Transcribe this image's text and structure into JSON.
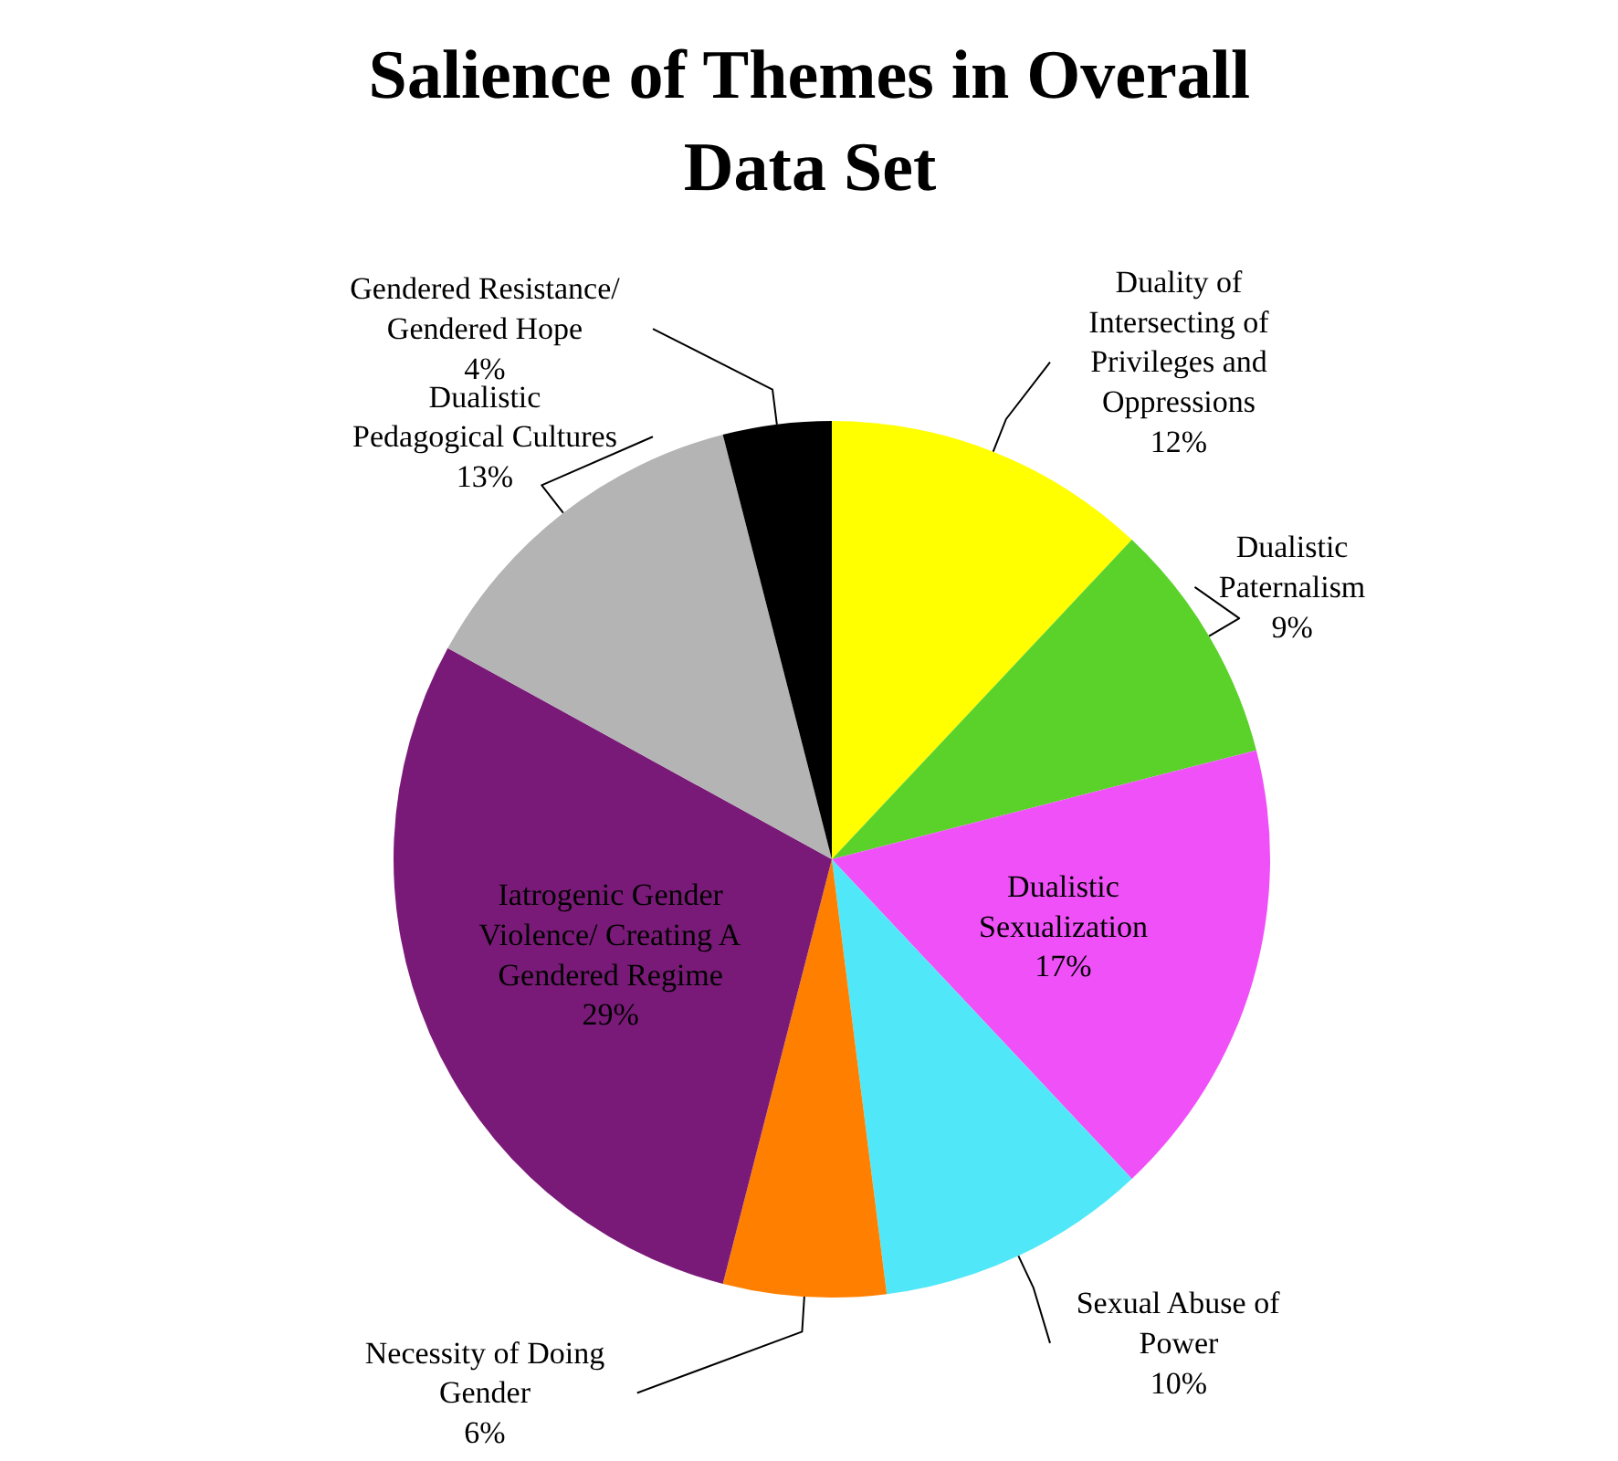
{
  "chart_data": {
    "type": "pie",
    "title": "Salience of Themes in Overall Data Set",
    "categories": [
      "Duality of Intersecting of Privileges and Oppressions",
      "Dualistic Paternalism",
      "Dualistic Sexualization",
      "Sexual Abuse of Power",
      "Necessity of Doing Gender",
      "Iatrogenic Gender Violence/ Creating A Gendered Regime",
      "Dualistic Pedagogical Cultures",
      "Gendered Resistance/ Gendered Hope"
    ],
    "values": [
      12,
      9,
      17,
      10,
      6,
      29,
      13,
      4
    ],
    "value_labels": [
      "12%",
      "9%",
      "17%",
      "10%",
      "6%",
      "29%",
      "13%",
      "4%"
    ],
    "colors": [
      "#ffff00",
      "#5ad22a",
      "#f050f8",
      "#50e8f8",
      "#ff8000",
      "#7a1a78",
      "#b4b4b4",
      "#000000"
    ]
  }
}
